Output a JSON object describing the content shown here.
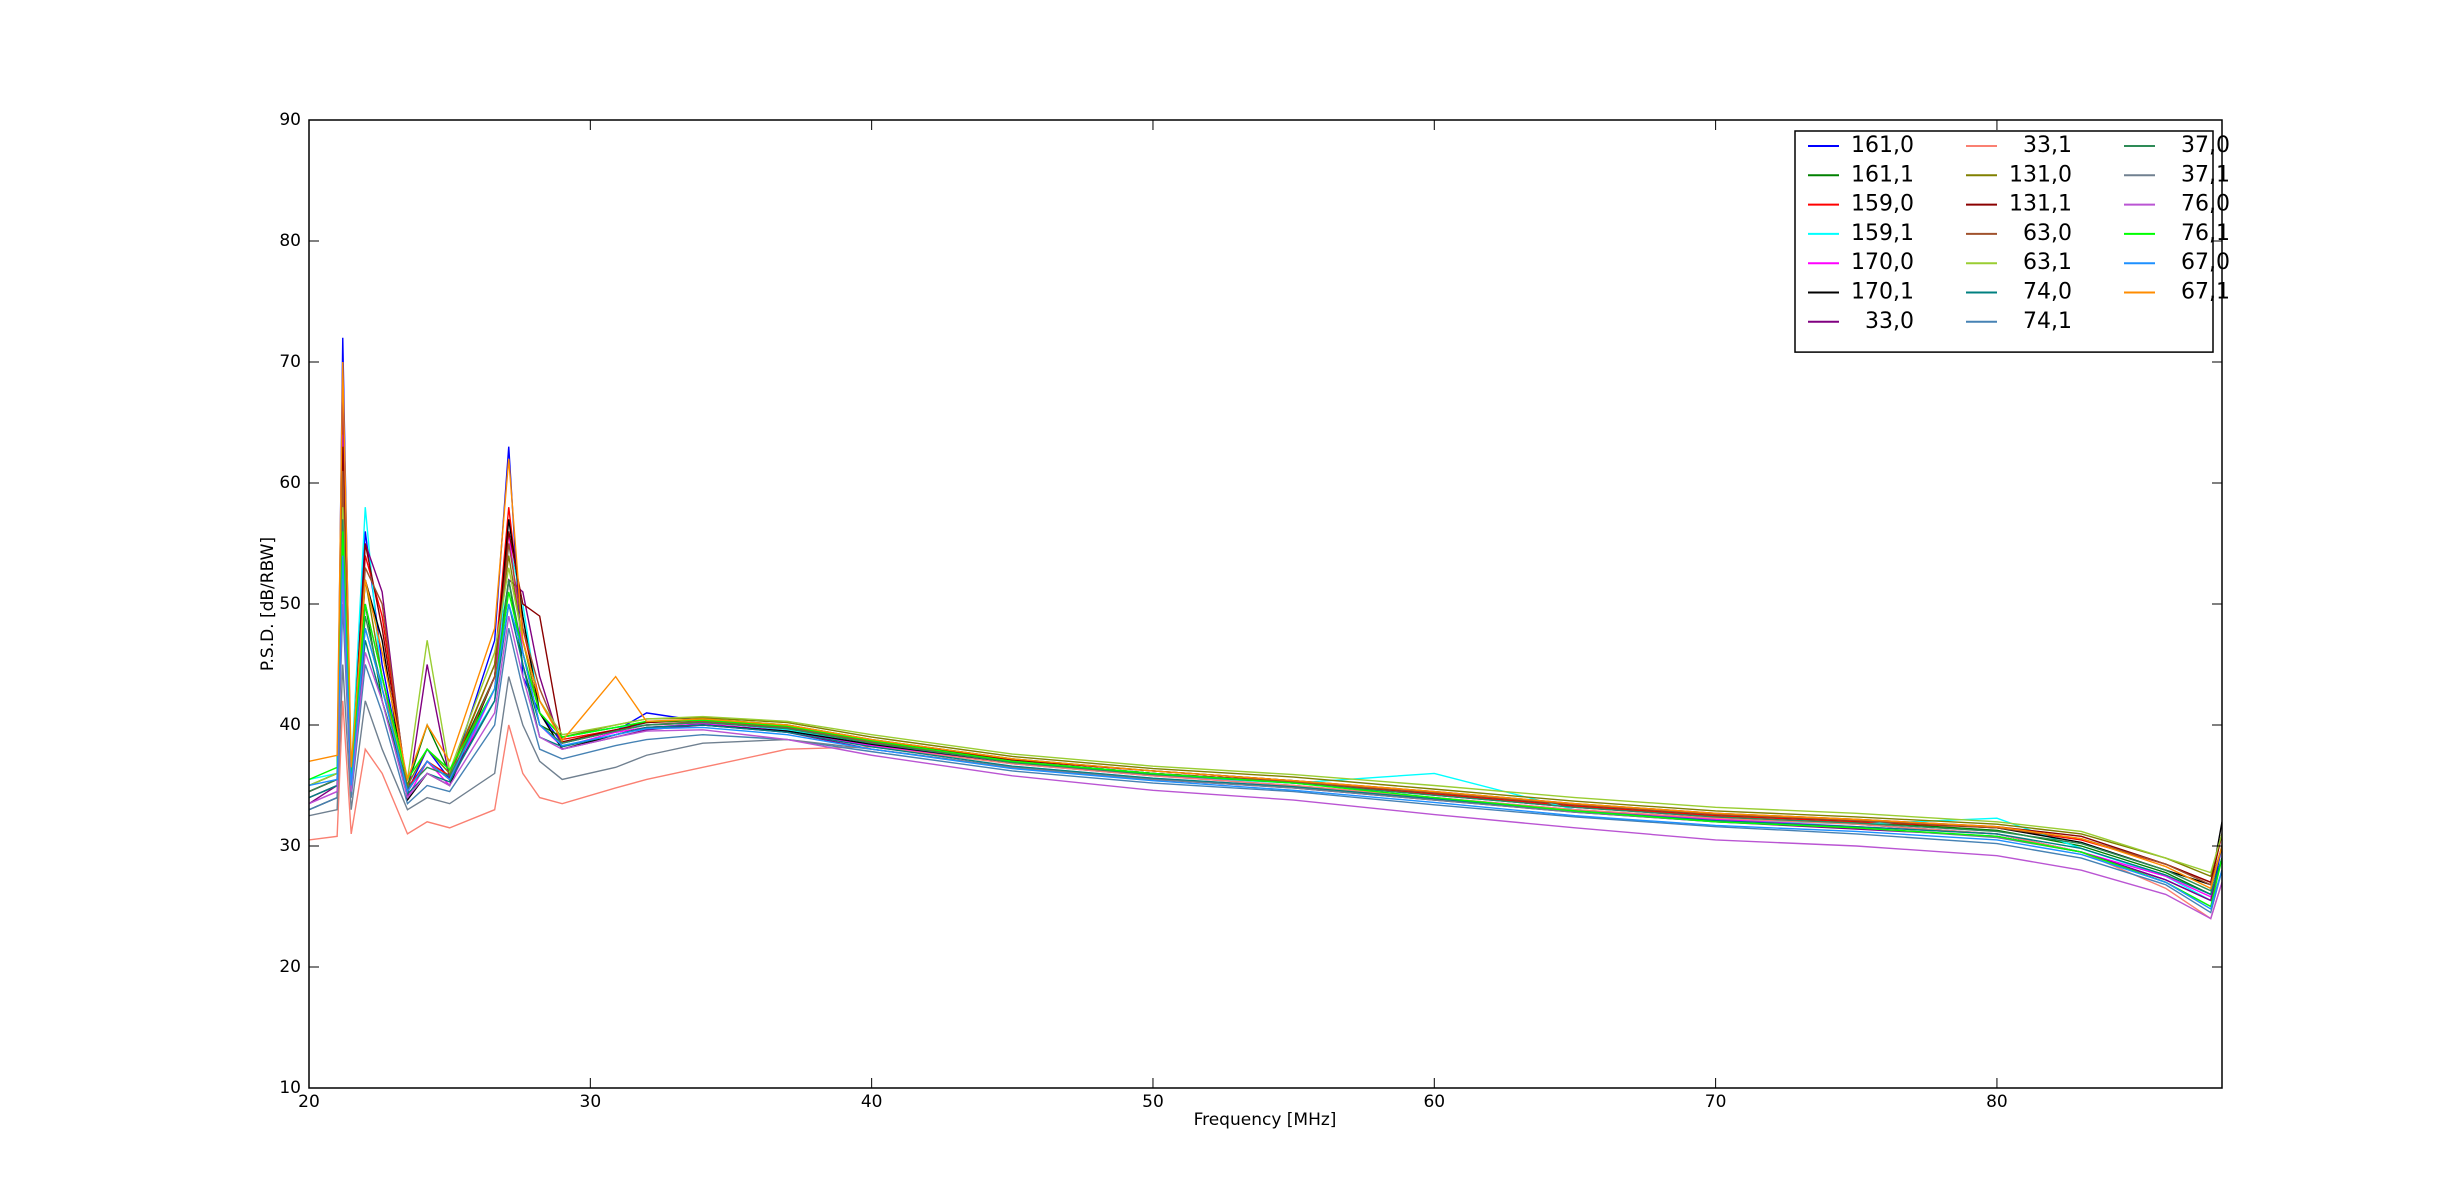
{
  "chart_data": {
    "type": "line",
    "x_label": "Frequency [MHz]",
    "y_label": "P.S.D. [dB/RBW]",
    "xlim": [
      20,
      88
    ],
    "ylim": [
      10,
      90
    ],
    "xticks": [
      20,
      30,
      40,
      50,
      60,
      70,
      80
    ],
    "yticks": [
      10,
      20,
      30,
      40,
      50,
      60,
      70,
      80,
      90
    ],
    "legend": "upper right",
    "legend_columns": 3,
    "x": [
      20,
      21,
      21.2,
      21.5,
      22,
      22.6,
      23.5,
      24.2,
      25,
      26.6,
      27.1,
      27.6,
      28.2,
      29,
      30.9,
      32,
      34,
      37,
      40,
      45,
      50,
      55,
      60,
      65,
      70,
      75,
      80,
      83,
      86,
      87.6,
      88
    ],
    "series": [
      {
        "name": "161,0",
        "color": "#0000ff",
        "values": [
          34,
          35,
          72,
          35,
          56,
          45,
          34.5,
          38,
          35.5,
          47,
          63,
          44,
          41,
          38.5,
          39.5,
          41,
          40.3,
          39.6,
          38.5,
          37,
          36,
          35.2,
          34.2,
          33.2,
          32.4,
          31.8,
          31,
          29.5,
          27.2,
          25.5,
          30
        ]
      },
      {
        "name": "161,1",
        "color": "#008000",
        "values": [
          35,
          36,
          60,
          35.5,
          50,
          42,
          35,
          40,
          36,
          44,
          52,
          45,
          40,
          39,
          39.8,
          40.2,
          40.5,
          40,
          38.8,
          37.2,
          36.2,
          35.4,
          34.4,
          33.4,
          32.6,
          32,
          31.3,
          30,
          27.8,
          26,
          29
        ]
      },
      {
        "name": "159,0",
        "color": "#ff0000",
        "values": [
          34.5,
          35.5,
          66,
          35,
          54,
          49,
          34.8,
          37,
          35.8,
          45,
          58,
          48,
          42,
          38.8,
          39.6,
          40,
          40.2,
          39.8,
          38.6,
          37,
          36,
          35.3,
          34.3,
          33.3,
          32.5,
          32,
          31.5,
          30.5,
          28.5,
          27,
          31
        ]
      },
      {
        "name": "159,1",
        "color": "#00ffff",
        "values": [
          35.5,
          36,
          50,
          36,
          58,
          43,
          35.5,
          38,
          36,
          42,
          55,
          50,
          41,
          39,
          39.8,
          40,
          40.3,
          39.6,
          38.4,
          36.8,
          35.8,
          35.2,
          36,
          33,
          32.2,
          31.8,
          32.3,
          29.8,
          27.5,
          25.5,
          29
        ]
      },
      {
        "name": "170,0",
        "color": "#ff00ff",
        "values": [
          33.5,
          34.5,
          64,
          34.5,
          50,
          44,
          34,
          37,
          35,
          43,
          56,
          46,
          40,
          38.2,
          39.4,
          39.8,
          40.1,
          39.5,
          38.3,
          36.8,
          35.8,
          35,
          34,
          33,
          32.2,
          31.6,
          31,
          29.5,
          27.5,
          25.8,
          29
        ]
      },
      {
        "name": "170,1",
        "color": "#000000",
        "values": [
          33,
          34,
          62,
          34,
          52,
          47,
          33.8,
          36,
          35,
          44,
          57,
          49,
          41,
          38,
          39.2,
          39.8,
          40,
          39.5,
          38.4,
          36.9,
          36,
          35.3,
          34.4,
          33.4,
          32.6,
          32.1,
          31.5,
          30.3,
          28,
          26.8,
          32
        ]
      },
      {
        "name": "33,0",
        "color": "#800080",
        "values": [
          33.5,
          35,
          68,
          34.5,
          55,
          51,
          34,
          45,
          35.5,
          42,
          52,
          51,
          44,
          38,
          39,
          39.6,
          40,
          39.4,
          38,
          36.5,
          35.5,
          34.8,
          33.8,
          32.8,
          32,
          31.4,
          30.8,
          29.5,
          27.2,
          25.5,
          29
        ]
      },
      {
        "name": "33,1",
        "color": "#fa8072",
        "values": [
          30.5,
          30.8,
          42,
          31,
          38,
          36,
          31,
          32,
          31.5,
          33,
          40,
          36,
          34,
          33.5,
          34.8,
          35.5,
          36.5,
          38,
          38.2,
          36.8,
          35.8,
          35,
          34,
          33,
          32.3,
          31.8,
          31,
          29.5,
          26.5,
          24,
          27
        ]
      },
      {
        "name": "131,0",
        "color": "#808000",
        "values": [
          35,
          36,
          60,
          35.5,
          52,
          44,
          35,
          38,
          36,
          45,
          54,
          47,
          41,
          39,
          40,
          40.5,
          40.6,
          40.2,
          39,
          37.4,
          36.4,
          35.7,
          34.7,
          33.7,
          32.9,
          32.4,
          31.8,
          31,
          29,
          27.5,
          31
        ]
      },
      {
        "name": "131,1",
        "color": "#8b0000",
        "values": [
          34.5,
          35.5,
          63,
          35,
          55,
          48,
          34.5,
          37,
          35.5,
          44,
          56,
          50,
          49,
          38.6,
          39.6,
          40.2,
          40.4,
          39.9,
          38.7,
          37.1,
          36.2,
          35.4,
          34.5,
          33.5,
          32.7,
          32.2,
          31.6,
          30.8,
          28.5,
          27,
          31
        ]
      },
      {
        "name": "63,0",
        "color": "#a0522d",
        "values": [
          34,
          35,
          61,
          35,
          53,
          50,
          34.5,
          37,
          35.5,
          44,
          55,
          48,
          43,
          38.5,
          39.5,
          40,
          40.3,
          39.8,
          38.6,
          37,
          36,
          35.3,
          34.4,
          33.4,
          32.6,
          32.1,
          31.5,
          30.6,
          28.5,
          26.8,
          30
        ]
      },
      {
        "name": "63,1",
        "color": "#9acd32",
        "values": [
          35,
          36,
          58,
          36,
          48,
          43,
          35.5,
          47,
          36.2,
          46,
          53,
          47,
          42,
          39.2,
          40,
          40.5,
          40.7,
          40.3,
          39.2,
          37.6,
          36.6,
          35.9,
          35,
          34,
          33.2,
          32.7,
          32,
          31.2,
          29,
          27.8,
          31
        ]
      },
      {
        "name": "74,0",
        "color": "#008080",
        "values": [
          34,
          35,
          55,
          35,
          47,
          42,
          34.3,
          36,
          35.3,
          42,
          50,
          45,
          39,
          38.2,
          39.2,
          39.8,
          40,
          39.4,
          38.2,
          36.6,
          35.6,
          34.9,
          33.9,
          32.9,
          32.1,
          31.6,
          31,
          29.8,
          27.6,
          26,
          29
        ]
      },
      {
        "name": "74,1",
        "color": "#4682b4",
        "values": [
          33,
          34,
          50,
          34,
          45,
          41,
          33.5,
          35,
          34.5,
          40,
          48,
          43,
          38,
          37.2,
          38.3,
          38.8,
          39.2,
          38.8,
          37.8,
          36.2,
          35.2,
          34.5,
          33.4,
          32.4,
          31.6,
          31,
          30.2,
          29,
          26.8,
          24.5,
          28
        ]
      },
      {
        "name": "37,0",
        "color": "#2e8b57",
        "values": [
          34.5,
          35.5,
          57,
          35,
          49,
          43,
          34.8,
          36.5,
          35.8,
          43,
          52,
          46,
          40,
          38.5,
          39.5,
          40,
          40.2,
          39.7,
          38.5,
          36.9,
          35.9,
          35.2,
          34.2,
          33.2,
          32.4,
          31.9,
          31.2,
          30.2,
          28,
          26.3,
          30
        ]
      },
      {
        "name": "37,1",
        "color": "#708090",
        "values": [
          32.5,
          33,
          45,
          33,
          42,
          38,
          33,
          34,
          33.5,
          36,
          44,
          40,
          37,
          35.5,
          36.5,
          37.5,
          38.5,
          38.8,
          38,
          36.5,
          35.5,
          34.8,
          33.8,
          32.8,
          32,
          31.5,
          30.7,
          29.5,
          27,
          25,
          28
        ]
      },
      {
        "name": "76,0",
        "color": "#ba55d3",
        "values": [
          33.5,
          34.5,
          52,
          34.5,
          46,
          42,
          34,
          36,
          35,
          41,
          49,
          44,
          39,
          38,
          39,
          39.5,
          39.6,
          38.8,
          37.5,
          35.8,
          34.6,
          33.8,
          32.6,
          31.5,
          30.5,
          30,
          29.2,
          28,
          26,
          24,
          27
        ]
      },
      {
        "name": "76,1",
        "color": "#00ff00",
        "values": [
          35.5,
          36.5,
          56,
          36,
          50,
          44,
          35.5,
          38,
          36.3,
          43,
          51,
          46,
          41,
          39,
          39.8,
          40.3,
          40.4,
          39.9,
          38.7,
          37,
          36,
          35.2,
          34,
          32.9,
          32,
          31.5,
          30.8,
          29.5,
          27,
          25,
          29
        ]
      },
      {
        "name": "67,0",
        "color": "#1e90ff",
        "values": [
          35,
          35.5,
          54,
          35,
          48,
          43,
          34.5,
          37,
          35.5,
          43,
          50,
          46,
          40,
          38.3,
          39.2,
          39.7,
          39.8,
          39.2,
          38,
          36.4,
          35.4,
          34.6,
          33.6,
          32.5,
          31.7,
          31.2,
          30.5,
          29.3,
          27,
          24.8,
          28
        ]
      },
      {
        "name": "67,1",
        "color": "#ff8c00",
        "values": [
          37,
          37.5,
          70,
          36.5,
          52,
          46,
          35.5,
          40,
          37,
          48,
          62,
          47,
          42,
          38.7,
          44,
          40.3,
          40.5,
          40,
          38.8,
          37.2,
          36.2,
          35.4,
          34.5,
          33.5,
          32.7,
          32.2,
          31.6,
          30.6,
          28.3,
          26.5,
          30
        ]
      }
    ]
  }
}
